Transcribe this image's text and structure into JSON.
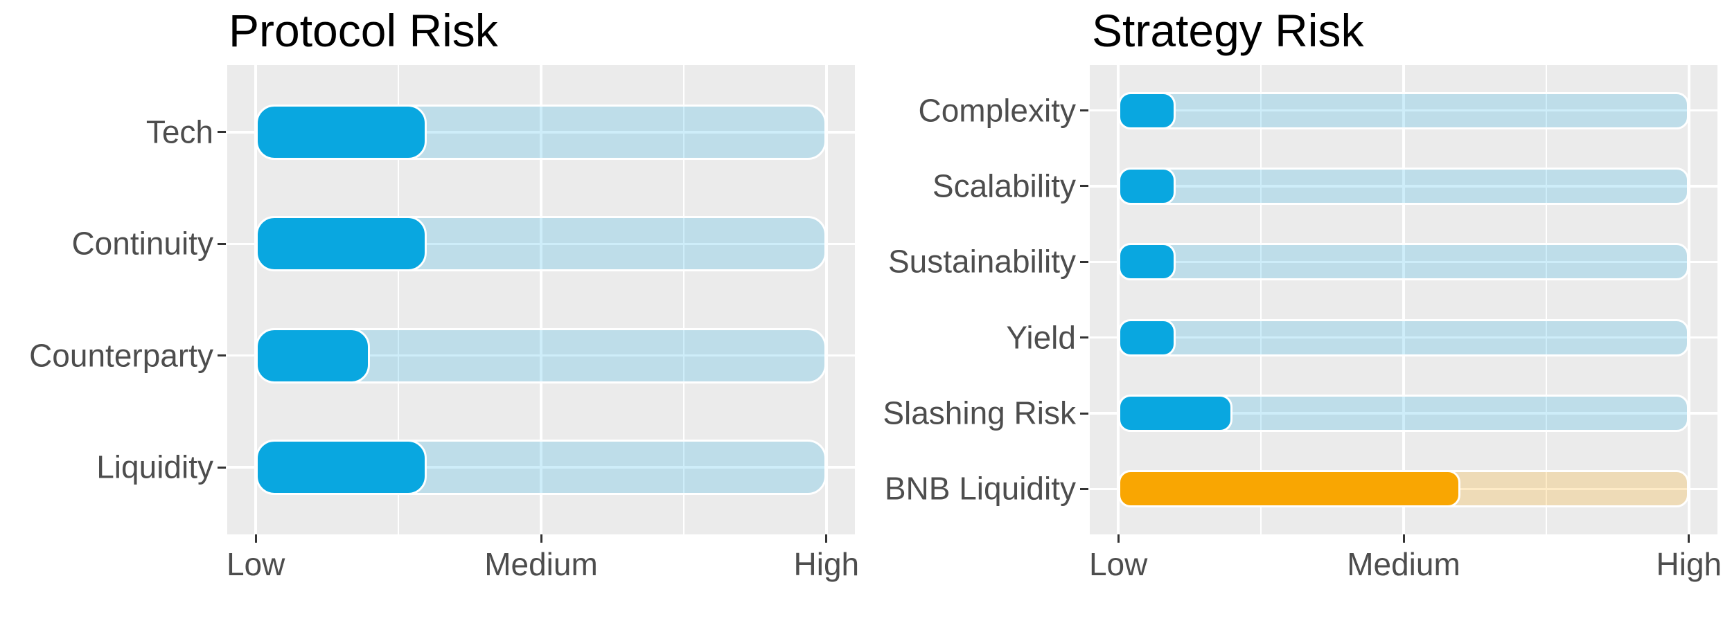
{
  "style": {
    "page_bg": "#FFFFFF",
    "panel_bg": "#EBEBEB",
    "grid_color": "#FFFFFF",
    "tick_color": "#333333",
    "axis_text_color": "#4D4D4D",
    "title_color": "#000000",
    "bar_blue": "#09A7E0",
    "bar_orange": "#F9A602",
    "track_blue": "rgba(9,167,224,0.2)",
    "track_orange": "rgba(249,166,2,0.22)"
  },
  "chart_data": [
    {
      "type": "bar",
      "title": "Protocol Risk",
      "orientation": "horizontal",
      "categories": [
        "Tech",
        "Continuity",
        "Counterparty",
        "Liquidity"
      ],
      "values": [
        1.6,
        1.6,
        1.4,
        1.6
      ],
      "bar_colors": [
        "blue",
        "blue",
        "blue",
        "blue"
      ],
      "track_full_value": 3,
      "xlim": [
        1,
        3
      ],
      "x_tick_labels": [
        "Low",
        "Medium",
        "High"
      ],
      "x_tick_values": [
        1,
        2,
        3
      ],
      "x_minor_values": [
        1.5,
        2.5
      ],
      "grid": true,
      "legend": "none"
    },
    {
      "type": "bar",
      "title": "Strategy Risk",
      "orientation": "horizontal",
      "categories": [
        "Complexity",
        "Scalability",
        "Sustainability",
        "Yield",
        "Slashing Risk",
        "BNB Liquidity"
      ],
      "values": [
        1.2,
        1.2,
        1.2,
        1.2,
        1.4,
        2.2
      ],
      "bar_colors": [
        "blue",
        "blue",
        "blue",
        "blue",
        "blue",
        "orange"
      ],
      "track_full_value": 3,
      "xlim": [
        1,
        3
      ],
      "x_tick_labels": [
        "Low",
        "Medium",
        "High"
      ],
      "x_tick_values": [
        1,
        2,
        3
      ],
      "x_minor_values": [
        1.5,
        2.5
      ],
      "grid": true,
      "legend": "none"
    }
  ]
}
